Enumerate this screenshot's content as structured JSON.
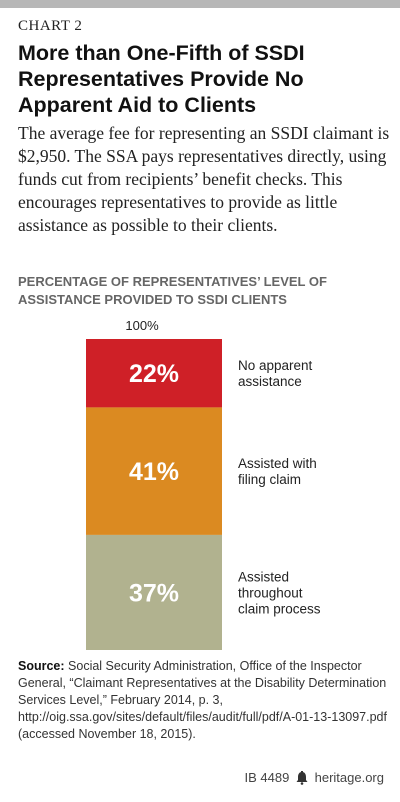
{
  "header": {
    "label": "CHART 2",
    "title": "More than One-Fifth of SSDI Representatives Provide No Apparent Aid to Clients",
    "subtitle": "The average fee for representing an SSDI claimant is $2,950. The SSA pays representatives directly, using funds cut from recipients’ benefit checks. This encourages representatives to provide as little assistance as possible to their clients."
  },
  "chart_data": {
    "type": "bar",
    "stacked": true,
    "title": "PERCENTAGE OF REPRESENTATIVES’ LEVEL OF ASSISTANCE PROVIDED TO SSDI CLIENTS",
    "top_label": "100%",
    "categories": [
      "No apparent assistance",
      "Assisted with filing claim",
      "Assisted throughout claim process"
    ],
    "series": [
      {
        "name": "No apparent assistance",
        "value": 22,
        "value_label": "22%",
        "color": "#cf2027",
        "label_lines": [
          "No apparent",
          "assistance"
        ]
      },
      {
        "name": "Assisted with filing claim",
        "value": 41,
        "value_label": "41%",
        "color": "#db8a21",
        "label_lines": [
          "Assisted with",
          "filing claim"
        ]
      },
      {
        "name": "Assisted throughout claim process",
        "value": 37,
        "value_label": "37%",
        "color": "#b1b28f",
        "label_lines": [
          "Assisted",
          "throughout",
          "claim process"
        ]
      }
    ],
    "ylim": [
      0,
      100
    ]
  },
  "source": {
    "heading": "Source:",
    "text": "Social Security Administration, Office of the Inspector General, “Claimant Representatives at the Disability Determination Services Level,” February 2014, p. 3, http://oig.ssa.gov/sites/default/files/audit/full/pdf/A-01-13-13097.pdf (accessed November 18, 2015)."
  },
  "footer": {
    "report_id": "IB 4489",
    "site": "heritage.org"
  }
}
